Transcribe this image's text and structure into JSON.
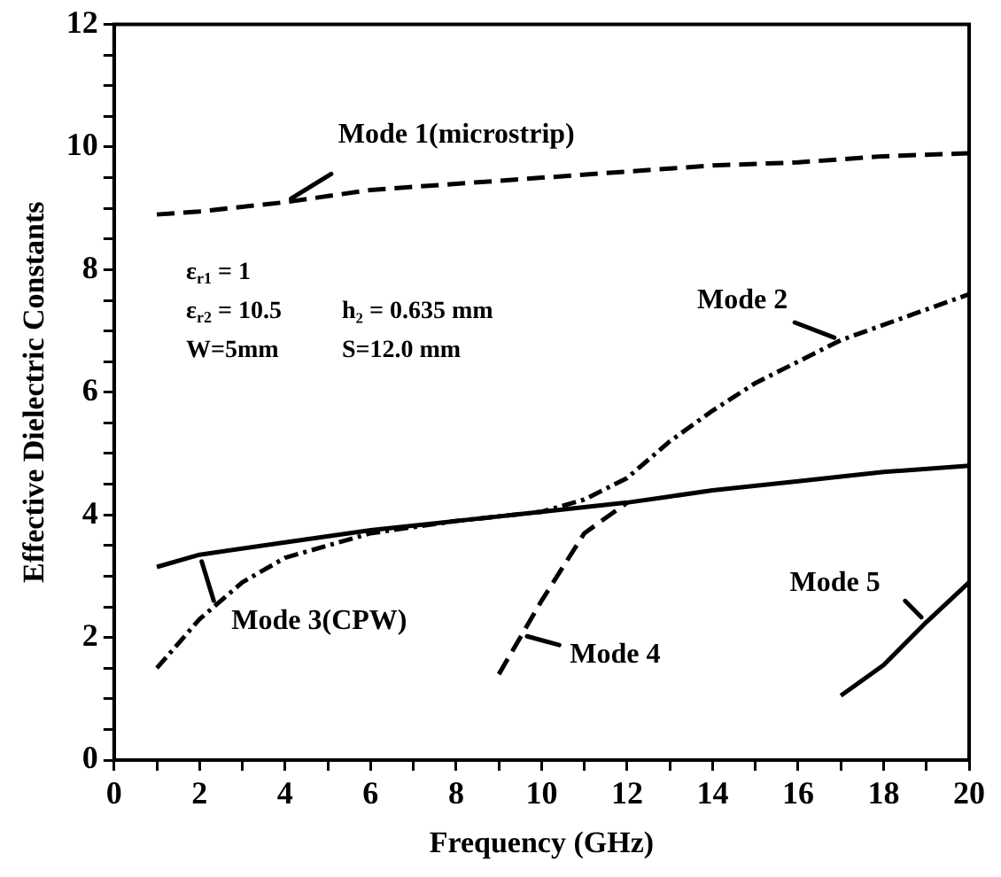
{
  "chart_data": {
    "type": "line",
    "xlabel": "Frequency (GHz)",
    "ylabel": "Effective Dielectric Constants",
    "xlim": [
      0,
      20
    ],
    "ylim": [
      0,
      12
    ],
    "xticks": [
      0,
      {
        "value": 1,
        "label": null
      },
      2,
      {
        "value": 3,
        "label": null
      },
      4,
      {
        "value": 5,
        "label": null
      },
      6,
      {
        "value": 7,
        "label": null
      },
      8,
      {
        "value": 9,
        "label": null
      },
      10,
      {
        "value": 11,
        "label": null
      },
      12,
      {
        "value": 13,
        "label": null
      },
      14,
      {
        "value": 15,
        "label": null
      },
      16,
      {
        "value": 17,
        "label": null
      },
      18,
      {
        "value": 19,
        "label": null
      },
      20
    ],
    "yticks": [
      0,
      {
        "value": 0.5,
        "label": null
      },
      {
        "value": 1,
        "label": null
      },
      {
        "value": 1.5,
        "label": null
      },
      2,
      {
        "value": 2.5,
        "label": null
      },
      {
        "value": 3,
        "label": null
      },
      {
        "value": 3.5,
        "label": null
      },
      4,
      {
        "value": 4.5,
        "label": null
      },
      {
        "value": 5,
        "label": null
      },
      {
        "value": 5.5,
        "label": null
      },
      6,
      {
        "value": 6.5,
        "label": null
      },
      {
        "value": 7,
        "label": null
      },
      {
        "value": 7.5,
        "label": null
      },
      8,
      {
        "value": 8.5,
        "label": null
      },
      {
        "value": 9,
        "label": null
      },
      {
        "value": 9.5,
        "label": null
      },
      10,
      {
        "value": 10.5,
        "label": null
      },
      {
        "value": 11,
        "label": null
      },
      {
        "value": 11.5,
        "label": null
      },
      12
    ],
    "grid": false,
    "marker": "none",
    "legend": false,
    "series": [
      {
        "color": "#000000",
        "line_style": "dashed",
        "x": [
          1,
          2,
          4,
          6,
          8,
          10,
          12,
          14,
          16,
          18,
          20
        ],
        "values": [
          8.9,
          8.95,
          9.1,
          9.3,
          9.4,
          9.5,
          9.6,
          9.7,
          9.75,
          9.85,
          9.9
        ]
      },
      {
        "color": "#000000",
        "line_style": "dashdot",
        "x": [
          1,
          2,
          3,
          4,
          6,
          8,
          10,
          11,
          12,
          13,
          14,
          15,
          16,
          17,
          18,
          19,
          20
        ],
        "values": [
          1.5,
          2.3,
          2.9,
          3.3,
          3.7,
          3.9,
          4.05,
          4.25,
          4.6,
          5.2,
          5.7,
          6.15,
          6.5,
          6.85,
          7.1,
          7.35,
          7.6
        ]
      },
      {
        "color": "#000000",
        "line_style": "solid",
        "x": [
          1,
          2,
          4,
          6,
          8,
          10,
          12,
          13,
          14,
          16,
          18,
          20
        ],
        "values": [
          3.15,
          3.35,
          3.55,
          3.75,
          3.9,
          4.05,
          4.2,
          4.3,
          4.4,
          4.55,
          4.7,
          4.8
        ]
      },
      {
        "color": "#000000",
        "line_style": "dashed",
        "x": [
          9,
          10,
          11,
          12
        ],
        "values": [
          1.4,
          2.6,
          3.7,
          4.2
        ]
      },
      {
        "color": "#000000",
        "line_style": "solid",
        "x": [
          17,
          18,
          19,
          20
        ],
        "values": [
          1.05,
          1.55,
          2.25,
          2.9
        ]
      }
    ],
    "annotations": [
      {
        "text": "Mode 1(microstrip)",
        "x": 4,
        "y": 9.1
      },
      {
        "text": "Mode 2",
        "x": 17,
        "y": 6.85
      },
      {
        "text": "Mode 3(CPW)",
        "x": 2,
        "y": 3.35
      },
      {
        "text": "Mode 4",
        "x": 9.5,
        "y": 2.05
      },
      {
        "text": "Mode 5",
        "x": 19,
        "y": 2.25
      },
      "ε$_{r1}$ = 1",
      "ε$_{r2}$ = 10.5",
      "h₂ = 0.635 mm",
      "W=5mm",
      "S=12.0 mm"
    ]
  }
}
